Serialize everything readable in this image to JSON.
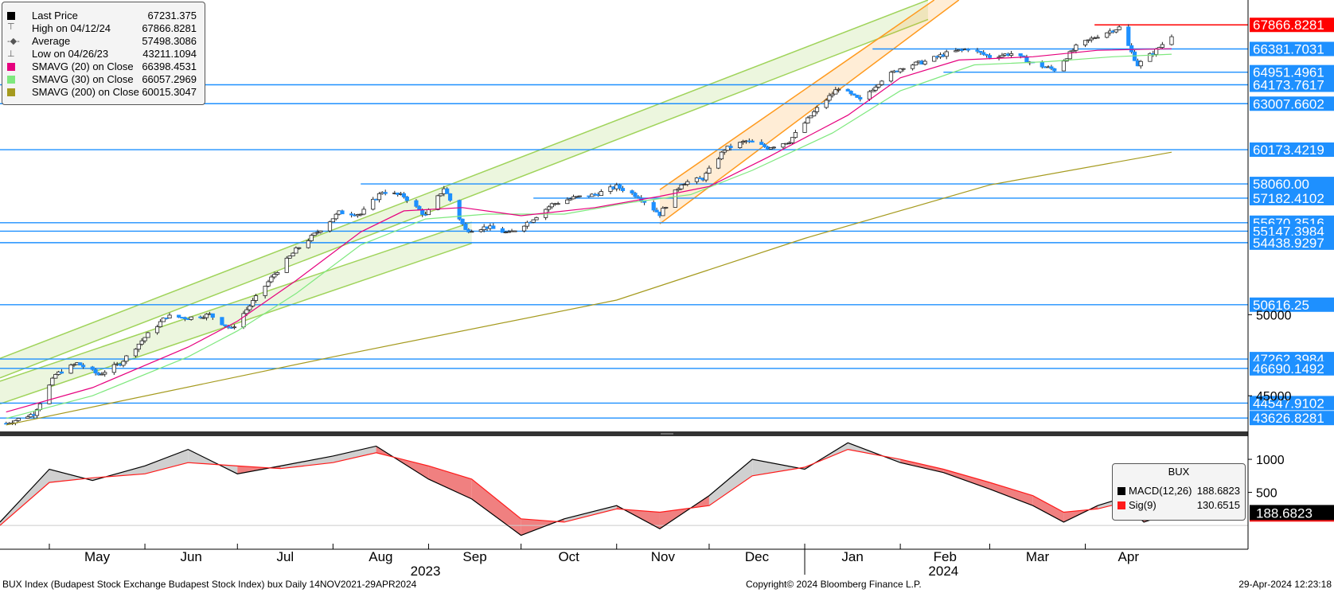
{
  "legend": [
    {
      "label": "Last Price",
      "value": "67231.375",
      "color": "#000000",
      "marker": "square"
    },
    {
      "label": "High on 04/12/24",
      "value": "67866.8281",
      "color": "#555555",
      "marker": "high"
    },
    {
      "label": "Average",
      "value": "57498.3086",
      "color": "#555555",
      "marker": "avg"
    },
    {
      "label": "Low on 04/26/23",
      "value": "43211.1094",
      "color": "#555555",
      "marker": "low"
    },
    {
      "label": "SMAVG (20)  on Close",
      "value": "66398.4531",
      "color": "#e6007e",
      "marker": "square"
    },
    {
      "label": "SMAVG (30)  on Close",
      "value": "66057.2969",
      "color": "#7ee87e",
      "marker": "square"
    },
    {
      "label": "SMAVG (200)  on Close",
      "value": "60015.3047",
      "color": "#a59a1e",
      "marker": "square"
    }
  ],
  "macd_legend": {
    "title": "BUX",
    "items": [
      {
        "label": "MACD(12,26)",
        "value": "188.6823",
        "color": "#000000"
      },
      {
        "label": "Sig(9)",
        "value": "130.6515",
        "color": "#ff1a1a"
      }
    ]
  },
  "footer": {
    "left": "BUX Index (Budapest Stock Exchange Budapest Stock Index) bux  Daily 14NOV2021-29APR2024",
    "center": "Copyright© 2024 Bloomberg Finance L.P.",
    "right": "29-Apr-2024 12:23:18"
  },
  "colors": {
    "up": "#ffffff",
    "down": "#1e90ff",
    "sma20": "#e6007e",
    "sma30": "#7ee87e",
    "sma200": "#a59a1e",
    "level": "#1e90ff",
    "high": "#ff0000",
    "green_channel": "#9fd35a",
    "orange_channel": "#ff9a1e",
    "macd_fill_pos": "#d0d0d0",
    "macd_fill_neg": "#f08080"
  },
  "chart_data": [
    {
      "type": "candlestick",
      "title": "",
      "xlabel": "",
      "ylabel": "",
      "x_range": [
        "2023-04-15",
        "2024-04-29"
      ],
      "ylim": [
        42900,
        69400
      ],
      "grid": false,
      "month_labels": [
        "May",
        "Jun",
        "Jul",
        "Aug",
        "Sep",
        "Oct",
        "Nov",
        "Dec",
        "Jan",
        "Feb",
        "Mar",
        "Apr"
      ],
      "year_labels": [
        "2023",
        "2024"
      ],
      "y_tick_labels": [
        "50000",
        "45000"
      ],
      "price_path": [
        [
          "2023-04-17",
          43300
        ],
        [
          "2023-04-26",
          43900
        ],
        [
          "2023-05-03",
          46300
        ],
        [
          "2023-05-10",
          47000
        ],
        [
          "2023-05-17",
          46300
        ],
        [
          "2023-05-24",
          47000
        ],
        [
          "2023-06-01",
          48600
        ],
        [
          "2023-06-08",
          49900
        ],
        [
          "2023-06-15",
          49800
        ],
        [
          "2023-06-22",
          50000
        ],
        [
          "2023-06-29",
          49100
        ],
        [
          "2023-07-06",
          50800
        ],
        [
          "2023-07-13",
          52500
        ],
        [
          "2023-07-20",
          54000
        ],
        [
          "2023-07-27",
          55100
        ],
        [
          "2023-08-03",
          56300
        ],
        [
          "2023-08-10",
          56200
        ],
        [
          "2023-08-17",
          57600
        ],
        [
          "2023-08-24",
          57300
        ],
        [
          "2023-08-31",
          56100
        ],
        [
          "2023-09-06",
          57800
        ],
        [
          "2023-09-13",
          55200
        ],
        [
          "2023-09-20",
          55400
        ],
        [
          "2023-09-27",
          55000
        ],
        [
          "2023-10-04",
          55800
        ],
        [
          "2023-10-11",
          56800
        ],
        [
          "2023-10-18",
          57200
        ],
        [
          "2023-10-25",
          57400
        ],
        [
          "2023-11-01",
          57900
        ],
        [
          "2023-11-08",
          57300
        ],
        [
          "2023-11-15",
          56200
        ],
        [
          "2023-11-22",
          58100
        ],
        [
          "2023-11-29",
          58400
        ],
        [
          "2023-12-06",
          60200
        ],
        [
          "2023-12-13",
          60700
        ],
        [
          "2023-12-20",
          60300
        ],
        [
          "2023-12-27",
          60700
        ],
        [
          "2024-01-05",
          62700
        ],
        [
          "2024-01-12",
          64000
        ],
        [
          "2024-01-19",
          63200
        ],
        [
          "2024-01-26",
          64500
        ],
        [
          "2024-02-02",
          65300
        ],
        [
          "2024-02-09",
          65600
        ],
        [
          "2024-02-16",
          66100
        ],
        [
          "2024-02-23",
          66400
        ],
        [
          "2024-03-01",
          65900
        ],
        [
          "2024-03-08",
          66100
        ],
        [
          "2024-03-15",
          65500
        ],
        [
          "2024-03-22",
          65100
        ],
        [
          "2024-03-29",
          66500
        ],
        [
          "2024-04-05",
          67200
        ],
        [
          "2024-04-12",
          67700
        ],
        [
          "2024-04-18",
          65400
        ],
        [
          "2024-04-24",
          66300
        ],
        [
          "2024-04-29",
          67231
        ]
      ],
      "sma20_path": [
        [
          "2023-04-17",
          44000
        ],
        [
          "2023-05-15",
          45500
        ],
        [
          "2023-06-15",
          48000
        ],
        [
          "2023-07-01",
          49600
        ],
        [
          "2023-07-20",
          52100
        ],
        [
          "2023-08-10",
          55100
        ],
        [
          "2023-08-24",
          56400
        ],
        [
          "2023-09-12",
          56600
        ],
        [
          "2023-10-01",
          56100
        ],
        [
          "2023-10-25",
          56600
        ],
        [
          "2023-11-15",
          57300
        ],
        [
          "2023-12-01",
          57900
        ],
        [
          "2023-12-20",
          59700
        ],
        [
          "2024-01-15",
          62300
        ],
        [
          "2024-02-01",
          64600
        ],
        [
          "2024-02-20",
          65700
        ],
        [
          "2024-03-15",
          65900
        ],
        [
          "2024-04-05",
          66300
        ],
        [
          "2024-04-29",
          66398
        ]
      ],
      "sma30_path": [
        [
          "2023-04-17",
          43600
        ],
        [
          "2023-05-15",
          45000
        ],
        [
          "2023-06-15",
          47400
        ],
        [
          "2023-07-01",
          49000
        ],
        [
          "2023-07-20",
          51300
        ],
        [
          "2023-08-10",
          54300
        ],
        [
          "2023-08-31",
          55900
        ],
        [
          "2023-09-20",
          56200
        ],
        [
          "2023-10-15",
          56200
        ],
        [
          "2023-11-05",
          56900
        ],
        [
          "2023-11-25",
          57400
        ],
        [
          "2023-12-15",
          58900
        ],
        [
          "2024-01-10",
          61200
        ],
        [
          "2024-02-01",
          63800
        ],
        [
          "2024-02-25",
          65400
        ],
        [
          "2024-03-20",
          65600
        ],
        [
          "2024-04-10",
          65900
        ],
        [
          "2024-04-29",
          66057
        ]
      ],
      "sma200_path": [
        [
          "2023-04-17",
          43200
        ],
        [
          "2023-08-01",
          47400
        ],
        [
          "2023-11-01",
          50900
        ],
        [
          "2024-01-01",
          54700
        ],
        [
          "2024-03-01",
          58000
        ],
        [
          "2024-04-29",
          60015
        ]
      ],
      "levels": [
        {
          "value": 67866.8281,
          "label": "67866.8281",
          "start": "2024-04-04",
          "kind": "high"
        },
        {
          "value": 66381.7031,
          "label": "66381.7031",
          "start": "2024-01-23",
          "kind": "level"
        },
        {
          "value": 64951.4961,
          "label": "64951.4961",
          "start": "2024-02-15",
          "kind": "level"
        },
        {
          "value": 64173.7617,
          "label": "64173.7617",
          "start": "2023-04-15",
          "kind": "level"
        },
        {
          "value": 63007.6602,
          "label": "63007.6602",
          "start": "2023-04-15",
          "kind": "level"
        },
        {
          "value": 60173.4219,
          "label": "60173.4219",
          "start": "2023-04-15",
          "kind": "level"
        },
        {
          "value": 58060.0,
          "label": "58060.00",
          "start": "2023-08-10",
          "kind": "level"
        },
        {
          "value": 57182.4102,
          "label": "57182.4102",
          "start": "2023-10-05",
          "kind": "level"
        },
        {
          "value": 55670.3516,
          "label": "55670.3516",
          "start": "2023-04-15",
          "kind": "level"
        },
        {
          "value": 55147.3984,
          "label": "55147.3984",
          "start": "2023-04-15",
          "kind": "level"
        },
        {
          "value": 54438.9297,
          "label": "54438.9297",
          "start": "2023-04-15",
          "kind": "level"
        },
        {
          "value": 50616.25,
          "label": "50616.25",
          "start": "2023-04-15",
          "kind": "level"
        },
        {
          "value": 47262.3984,
          "label": "47262.3984",
          "start": "2023-04-15",
          "kind": "level"
        },
        {
          "value": 46690.1492,
          "label": "46690.1492",
          "start": "2023-04-15",
          "kind": "level"
        },
        {
          "value": 44547.9102,
          "label": "44547.9102",
          "start": "2023-04-15",
          "kind": "level"
        },
        {
          "value": 43626.8281,
          "label": "43626.8281",
          "start": "2023-04-15",
          "kind": "level"
        }
      ],
      "channels": [
        {
          "kind": "green",
          "upper": [
            [
              "2023-04-15",
              47300
            ],
            [
              "2024-02-10",
              69400
            ]
          ],
          "lower": [
            [
              "2023-04-15",
              46100
            ],
            [
              "2024-02-10",
              68200
            ]
          ]
        },
        {
          "kind": "green",
          "upper": [
            [
              "2023-04-15",
              45900
            ],
            [
              "2023-09-15",
              55700
            ]
          ],
          "lower": [
            [
              "2023-04-15",
              44500
            ],
            [
              "2023-09-15",
              54400
            ]
          ]
        },
        {
          "kind": "orange",
          "upper": [
            [
              "2023-11-15",
              57700
            ],
            [
              "2024-02-12",
              69400
            ]
          ],
          "lower": [
            [
              "2023-11-15",
              55600
            ],
            [
              "2024-02-20",
              69400
            ]
          ]
        }
      ]
    },
    {
      "type": "line",
      "title": "",
      "ylim": [
        -300,
        1350
      ],
      "y_tick_labels": [
        "1000",
        "500"
      ],
      "macd_label": "188.6823",
      "series": [
        {
          "name": "MACD(12,26)",
          "values": [
            [
              "2023-04-15",
              50
            ],
            [
              "2023-05-01",
              850
            ],
            [
              "2023-05-15",
              680
            ],
            [
              "2023-06-01",
              900
            ],
            [
              "2023-06-15",
              1150
            ],
            [
              "2023-07-01",
              780
            ],
            [
              "2023-07-15",
              900
            ],
            [
              "2023-08-01",
              1050
            ],
            [
              "2023-08-15",
              1200
            ],
            [
              "2023-09-01",
              700
            ],
            [
              "2023-09-15",
              400
            ],
            [
              "2023-10-01",
              -150
            ],
            [
              "2023-10-15",
              100
            ],
            [
              "2023-11-01",
              300
            ],
            [
              "2023-11-15",
              -50
            ],
            [
              "2023-12-01",
              450
            ],
            [
              "2023-12-15",
              1000
            ],
            [
              "2024-01-01",
              850
            ],
            [
              "2024-01-15",
              1250
            ],
            [
              "2024-02-01",
              950
            ],
            [
              "2024-02-15",
              800
            ],
            [
              "2024-03-01",
              550
            ],
            [
              "2024-03-15",
              300
            ],
            [
              "2024-03-25",
              50
            ],
            [
              "2024-04-05",
              300
            ],
            [
              "2024-04-12",
              400
            ],
            [
              "2024-04-20",
              50
            ],
            [
              "2024-04-29",
              188.6823
            ]
          ]
        },
        {
          "name": "Sig(9)",
          "values": [
            [
              "2023-04-15",
              0
            ],
            [
              "2023-05-01",
              650
            ],
            [
              "2023-05-15",
              720
            ],
            [
              "2023-06-01",
              780
            ],
            [
              "2023-06-15",
              950
            ],
            [
              "2023-07-01",
              900
            ],
            [
              "2023-07-15",
              860
            ],
            [
              "2023-08-01",
              950
            ],
            [
              "2023-08-15",
              1100
            ],
            [
              "2023-09-01",
              900
            ],
            [
              "2023-09-15",
              700
            ],
            [
              "2023-10-01",
              100
            ],
            [
              "2023-10-15",
              50
            ],
            [
              "2023-11-01",
              250
            ],
            [
              "2023-11-15",
              200
            ],
            [
              "2023-12-01",
              300
            ],
            [
              "2023-12-15",
              750
            ],
            [
              "2024-01-01",
              880
            ],
            [
              "2024-01-15",
              1150
            ],
            [
              "2024-02-01",
              1000
            ],
            [
              "2024-02-15",
              850
            ],
            [
              "2024-03-01",
              650
            ],
            [
              "2024-03-15",
              450
            ],
            [
              "2024-03-25",
              200
            ],
            [
              "2024-04-05",
              250
            ],
            [
              "2024-04-12",
              330
            ],
            [
              "2024-04-20",
              150
            ],
            [
              "2024-04-29",
              130.6515
            ]
          ]
        }
      ]
    }
  ]
}
